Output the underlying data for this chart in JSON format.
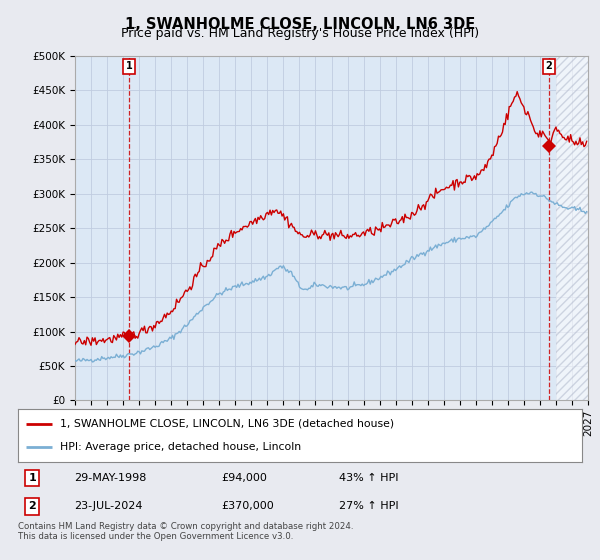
{
  "title": "1, SWANHOLME CLOSE, LINCOLN, LN6 3DE",
  "subtitle": "Price paid vs. HM Land Registry's House Price Index (HPI)",
  "ylim": [
    0,
    500000
  ],
  "yticks": [
    0,
    50000,
    100000,
    150000,
    200000,
    250000,
    300000,
    350000,
    400000,
    450000,
    500000
  ],
  "ytick_labels": [
    "£0",
    "£50K",
    "£100K",
    "£150K",
    "£200K",
    "£250K",
    "£300K",
    "£350K",
    "£400K",
    "£450K",
    "£500K"
  ],
  "xlim_start": 1995.0,
  "xlim_end": 2027.0,
  "sale1_x": 1998.38,
  "sale1_y": 94000,
  "sale2_x": 2024.55,
  "sale2_y": 370000,
  "legend_line1": "1, SWANHOLME CLOSE, LINCOLN, LN6 3DE (detached house)",
  "legend_line2": "HPI: Average price, detached house, Lincoln",
  "table_row1": [
    "1",
    "29-MAY-1998",
    "£94,000",
    "43% ↑ HPI"
  ],
  "table_row2": [
    "2",
    "23-JUL-2024",
    "£370,000",
    "27% ↑ HPI"
  ],
  "footnote": "Contains HM Land Registry data © Crown copyright and database right 2024.\nThis data is licensed under the Open Government Licence v3.0.",
  "line_color_red": "#cc0000",
  "line_color_blue": "#7bafd4",
  "background_color": "#e8eaf0",
  "plot_bg_color": "#dce8f5",
  "grid_color": "#c0cce0",
  "title_fontsize": 10.5,
  "subtitle_fontsize": 9,
  "tick_fontsize": 7.5,
  "hatch_start": 2025.0
}
